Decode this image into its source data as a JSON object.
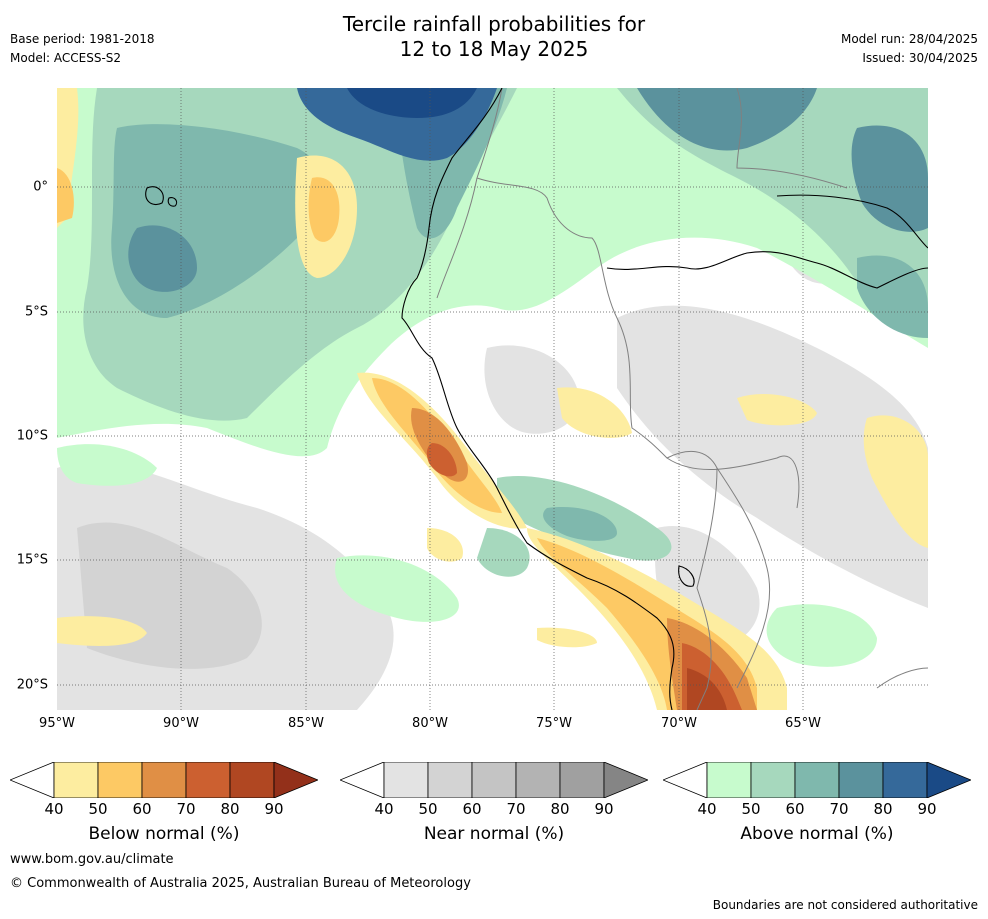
{
  "title": {
    "line1": "Tercile rainfall probabilities for",
    "line2": "12 to 18 May 2025"
  },
  "meta_left": {
    "base_period": "Base period: 1981-2018",
    "model": "Model: ACCESS-S2"
  },
  "meta_right": {
    "model_run": "Model run: 28/04/2025",
    "issued": "Issued: 30/04/2025"
  },
  "map": {
    "lon_ticks": [
      "95°W",
      "90°W",
      "85°W",
      "80°W",
      "75°W",
      "70°W",
      "65°W"
    ],
    "lat_ticks": [
      "0°",
      "5°S",
      "10°S",
      "15°S",
      "20°S"
    ]
  },
  "colorbars": [
    {
      "title": "Below normal (%)",
      "ticks": [
        "40",
        "50",
        "60",
        "70",
        "80",
        "90"
      ],
      "colors": [
        "#fdeda0",
        "#fdc964",
        "#e08f45",
        "#cc6030",
        "#b04722",
        "#93301a"
      ]
    },
    {
      "title": "Near normal (%)",
      "ticks": [
        "40",
        "50",
        "60",
        "70",
        "80",
        "90"
      ],
      "colors": [
        "#e3e3e3",
        "#d3d3d3",
        "#c4c4c4",
        "#b3b3b3",
        "#a0a0a0",
        "#858585"
      ]
    },
    {
      "title": "Above normal (%)",
      "ticks": [
        "40",
        "50",
        "60",
        "70",
        "80",
        "90"
      ],
      "colors": [
        "#c7fbcd",
        "#a6d8bd",
        "#7fb8ad",
        "#5b929d",
        "#35699a",
        "#1a4a86"
      ]
    }
  ],
  "footer": {
    "url": "www.bom.gov.au/climate",
    "copyright": "© Commonwealth of Australia 2025, Australian Bureau of Meteorology",
    "disclaimer": "Boundaries are not considered authoritative"
  }
}
